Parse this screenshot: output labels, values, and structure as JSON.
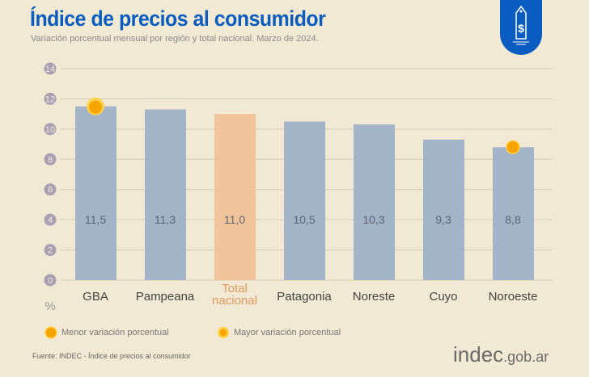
{
  "header": {
    "title": "Índice de precios al consumidor",
    "subtitle": "Variación porcentual mensual por región y total nacional. Marzo de 2024.",
    "icon": "price-tag-dollar-icon"
  },
  "chart_data": {
    "type": "bar",
    "categories": [
      "GBA",
      "Pampeana",
      "Total nacional",
      "Patagonia",
      "Noreste",
      "Cuyo",
      "Noroeste"
    ],
    "values": [
      11.5,
      11.3,
      11.0,
      10.5,
      10.3,
      9.3,
      8.8
    ],
    "value_labels": [
      "11,5",
      "11,3",
      "11,0",
      "10,5",
      "10,3",
      "9,3",
      "8,8"
    ],
    "ylabel": "%",
    "ylim": [
      0,
      14
    ],
    "yticks": [
      0,
      2,
      4,
      6,
      8,
      10,
      12,
      14
    ],
    "grid": true,
    "colors": {
      "bar": "#a3b4c8",
      "highlight": "#f2c49b",
      "marker": "#f7a400",
      "axis_label": "#aaa0b4"
    },
    "highlight_category": "Total nacional",
    "markers": [
      {
        "category": "GBA",
        "type": "mayor"
      },
      {
        "category": "Noroeste",
        "type": "menor"
      }
    ],
    "legend": [
      {
        "key": "menor",
        "label": "Menor variación porcentual"
      },
      {
        "key": "mayor",
        "label": "Mayor variación porcentual"
      }
    ],
    "legend_placement": "bottom"
  },
  "footer": {
    "source": "Fuente: INDEC - Índice de precios al consumidor",
    "logo_main": "indec",
    "logo_suffix": ".gob.ar"
  }
}
